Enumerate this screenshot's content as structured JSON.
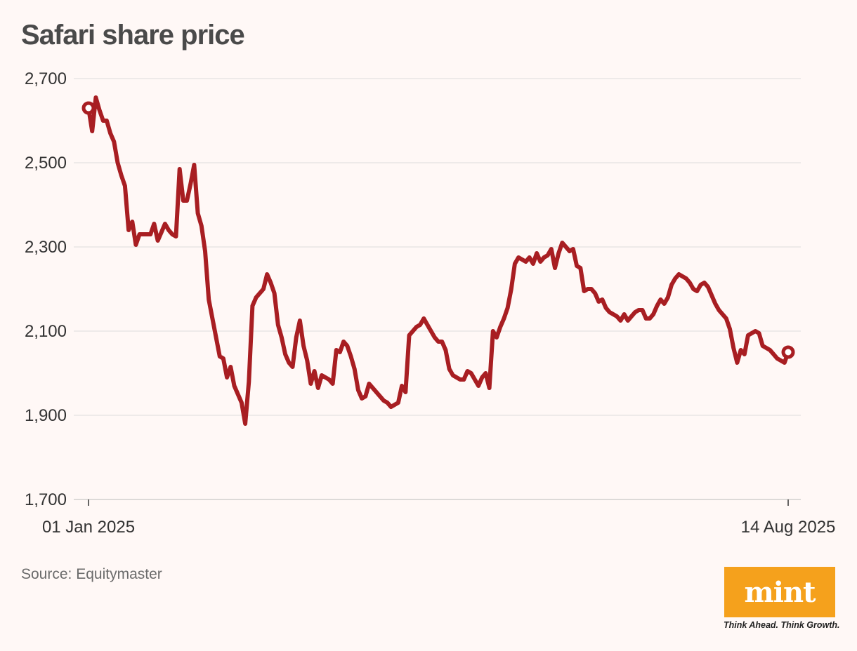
{
  "header": {
    "title": "Safari share price"
  },
  "footer": {
    "source": "Source: Equitymaster"
  },
  "logo": {
    "text": "mint",
    "tagline": "Think Ahead. Think Growth.",
    "color": "#f5a11c"
  },
  "colors": {
    "line": "#a81e22",
    "grid": "#dcdcdc",
    "background": "#fff8f6"
  },
  "chart_data": {
    "type": "line",
    "title": "Safari share price",
    "xlabel": "",
    "ylabel": "",
    "ylim": [
      1700,
      2700
    ],
    "yticks": [
      1700,
      1900,
      2100,
      2300,
      2500,
      2700
    ],
    "ytick_labels": [
      "1,700",
      "1,900",
      "2,100",
      "2,300",
      "2,500",
      "2,700"
    ],
    "xtick_labels": [
      "01 Jan 2025",
      "14 Aug 2025"
    ],
    "x_start": "2025-01-01",
    "x_end": "2025-08-14",
    "grid": true,
    "legend": "none",
    "series": [
      {
        "values": [
          2630,
          2575,
          2655,
          2625,
          2600,
          2600,
          2570,
          2550,
          2500,
          2470,
          2445,
          2340,
          2360,
          2305,
          2330,
          2330,
          2330,
          2330,
          2355,
          2315,
          2335,
          2355,
          2340,
          2330,
          2325,
          2485,
          2410,
          2410,
          2450,
          2495,
          2380,
          2350,
          2290,
          2175,
          2130,
          2085,
          2040,
          2035,
          1990,
          2015,
          1970,
          1950,
          1930,
          1880,
          1980,
          2160,
          2180,
          2190,
          2200,
          2235,
          2215,
          2190,
          2115,
          2085,
          2045,
          2025,
          2015,
          2085,
          2125,
          2065,
          2030,
          1975,
          2005,
          1965,
          1995,
          1990,
          1985,
          1975,
          2055,
          2050,
          2075,
          2065,
          2040,
          2010,
          1960,
          1940,
          1945,
          1975,
          1965,
          1955,
          1945,
          1935,
          1930,
          1920,
          1925,
          1930,
          1970,
          1955,
          2090,
          2100,
          2110,
          2115,
          2130,
          2115,
          2100,
          2085,
          2075,
          2075,
          2055,
          2010,
          1995,
          1990,
          1985,
          1985,
          2005,
          2000,
          1985,
          1970,
          1990,
          2000,
          1965,
          2100,
          2085,
          2110,
          2130,
          2155,
          2200,
          2260,
          2275,
          2270,
          2265,
          2275,
          2260,
          2285,
          2265,
          2275,
          2280,
          2295,
          2250,
          2285,
          2310,
          2300,
          2290,
          2295,
          2255,
          2250,
          2195,
          2200,
          2200,
          2190,
          2170,
          2175,
          2155,
          2145,
          2140,
          2135,
          2125,
          2140,
          2125,
          2135,
          2145,
          2150,
          2150,
          2130,
          2130,
          2140,
          2160,
          2175,
          2165,
          2180,
          2210,
          2225,
          2235,
          2230,
          2225,
          2215,
          2200,
          2195,
          2210,
          2215,
          2205,
          2185,
          2165,
          2150,
          2140,
          2130,
          2105,
          2060,
          2025,
          2055,
          2045,
          2090,
          2095,
          2100,
          2095,
          2065,
          2060,
          2055,
          2045,
          2035,
          2030,
          2025,
          2050
        ]
      }
    ]
  }
}
